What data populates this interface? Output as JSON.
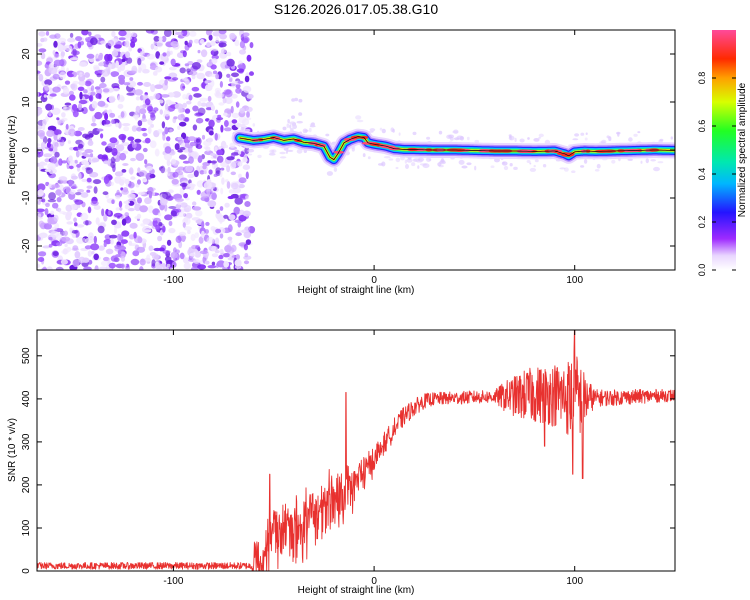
{
  "title": "S126.2026.017.05.38.G10",
  "chart_data": [
    {
      "type": "heatmap",
      "name": "spectrogram",
      "xlabel": "Height of straight line (km)",
      "ylabel": "Frequency (Hz)",
      "xlim": [
        -168,
        150
      ],
      "ylim": [
        -25,
        25
      ],
      "xticks": [
        -100,
        0,
        100
      ],
      "yticks": [
        -20,
        -10,
        0,
        10,
        20
      ],
      "noise_region_x": [
        -168,
        -63
      ],
      "signal_ridge": {
        "x": [
          -67,
          -60,
          -55,
          -50,
          -45,
          -40,
          -35,
          -30,
          -25,
          -22,
          -20,
          -18,
          -15,
          -12,
          -10,
          -8,
          -5,
          -3,
          0,
          3,
          6,
          10,
          15,
          20,
          30,
          40,
          50,
          60,
          70,
          80,
          90,
          95,
          97,
          100,
          105,
          110,
          120,
          130,
          140,
          150
        ],
        "y": [
          2.5,
          2.0,
          2.2,
          2.6,
          2.0,
          2.3,
          1.6,
          1.4,
          0.8,
          -1.5,
          -2.0,
          -0.8,
          1.5,
          2.2,
          2.5,
          2.8,
          2.6,
          1.5,
          1.2,
          1.0,
          0.8,
          0.3,
          0.1,
          0.1,
          0.0,
          0.0,
          -0.1,
          -0.2,
          -0.2,
          -0.3,
          -0.2,
          -0.8,
          -1.2,
          -0.4,
          -0.2,
          -0.3,
          -0.2,
          -0.1,
          0.0,
          -0.1
        ]
      },
      "colorbar": {
        "label": "Normalized spectral amplitude",
        "range": [
          0,
          1
        ],
        "ticks": [
          "0.0",
          "0.2",
          "0.4",
          "0.6",
          "0.8"
        ]
      }
    },
    {
      "type": "line",
      "name": "snr",
      "xlabel": "Height of straight line (km)",
      "ylabel": "SNR (10 * v/v)",
      "xlim": [
        -168,
        150
      ],
      "ylim": [
        0,
        560
      ],
      "xticks": [
        -100,
        0,
        100
      ],
      "yticks": [
        0,
        100,
        200,
        300,
        400,
        500
      ],
      "color": "#e8312f",
      "trend": {
        "x": [
          -168,
          -150,
          -130,
          -100,
          -80,
          -60,
          -55,
          -50,
          -45,
          -40,
          -35,
          -30,
          -25,
          -20,
          -15,
          -10,
          -5,
          0,
          5,
          10,
          15,
          20,
          25,
          30,
          40,
          50,
          60,
          70,
          80,
          90,
          95,
          100,
          105,
          110,
          120,
          130,
          140,
          150
        ],
        "y": [
          12,
          12,
          12,
          12,
          12,
          12,
          14,
          80,
          90,
          85,
          95,
          110,
          130,
          155,
          175,
          200,
          230,
          260,
          295,
          330,
          360,
          380,
          395,
          400,
          402,
          404,
          405,
          406,
          410,
          410,
          405,
          400,
          400,
          402,
          403,
          405,
          407,
          408
        ]
      },
      "noise_amplitude": {
        "x": [
          -168,
          -61,
          -60,
          -45,
          -30,
          -20,
          -10,
          0,
          10,
          30,
          60,
          65,
          75,
          85,
          95,
          100,
          105,
          110,
          150
        ],
        "a": [
          8,
          8,
          60,
          90,
          90,
          90,
          70,
          40,
          25,
          15,
          15,
          35,
          60,
          70,
          80,
          120,
          60,
          20,
          14
        ]
      },
      "spikes": [
        {
          "x": -52,
          "y": 225
        },
        {
          "x": -14,
          "y": 415
        },
        {
          "x": 100,
          "y": 560
        },
        {
          "x": 99,
          "y": 225
        },
        {
          "x": 104,
          "y": 215
        },
        {
          "x": 78,
          "y": 460
        },
        {
          "x": 85,
          "y": 290
        }
      ]
    }
  ]
}
